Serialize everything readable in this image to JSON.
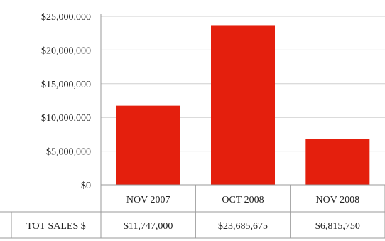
{
  "chart_data": {
    "type": "bar",
    "categories": [
      "NOV 2007",
      "OCT 2008",
      "NOV 2008"
    ],
    "values": [
      11747000,
      23685675,
      6815750
    ],
    "ylim": [
      0,
      25000000
    ],
    "y_ticks": [
      "$0",
      "$5,000,000",
      "$10,000,000",
      "$15,000,000",
      "$20,000,000",
      "$25,000,000"
    ],
    "bar_color": "#e41f0d",
    "grid": true,
    "data_table": {
      "row_header": "TOT SALES $",
      "cells": [
        "$11,747,000",
        "$23,685,675",
        "$6,815,750"
      ]
    }
  }
}
